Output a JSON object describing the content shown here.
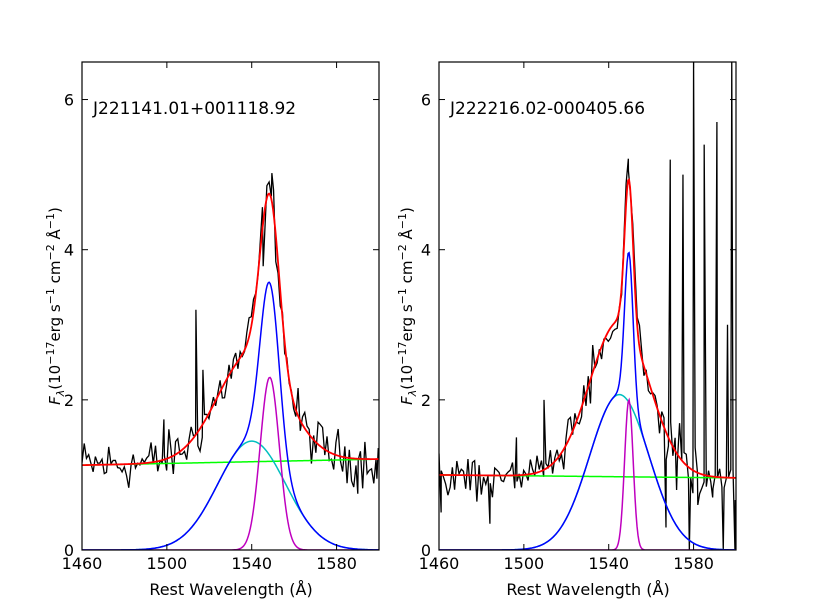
{
  "chart_data": [
    {
      "type": "line",
      "object_name": "J221141.01+001118.92",
      "xlabel": "Rest Wavelength (Å)",
      "ylabel": "F_λ (10^-17 erg s^-1 cm^-2 Å^-1)",
      "xlim": [
        1460,
        1600
      ],
      "ylim": [
        0,
        6.5
      ],
      "x_ticks": [
        1460,
        1500,
        1540,
        1580
      ],
      "y_ticks": [
        0,
        2,
        4,
        6
      ],
      "components": {
        "continuum": {
          "color": "#00ff00",
          "start": 1.13,
          "end": 1.21
        },
        "broad_gaussian": {
          "color": "#00bfbf",
          "center": 1540,
          "sigma": 16,
          "amplitude": 1.45
        },
        "narrow_gaussian": {
          "color": "#bf00bf",
          "center": 1548.5,
          "sigma": 4.5,
          "amplitude": 2.3
        },
        "line_sum": {
          "color": "#0000ff",
          "peak_value": 3.55
        },
        "total_fit": {
          "color": "#ff0000",
          "peak_value": 4.72
        }
      },
      "spectrum": {
        "color": "#000000",
        "noise_level": 0.17,
        "features": [
          {
            "x": 1498.6,
            "y": 1.74
          },
          {
            "x": 1513.7,
            "y": 3.2
          },
          {
            "x": 1517,
            "y": 2.4
          },
          {
            "x": 1549.5,
            "y": 5.02
          },
          {
            "x": 1545.4,
            "y": 3.78
          },
          {
            "x": 1590,
            "y": 0.75
          },
          {
            "x": 1599,
            "y": 0.95
          }
        ]
      }
    },
    {
      "type": "line",
      "object_name": "J222216.02-000405.66",
      "xlabel": "Rest Wavelength (Å)",
      "ylabel": "F_λ (10^-17 erg s^-1 cm^-2 Å^-1)",
      "xlim": [
        1460,
        1600
      ],
      "ylim": [
        0,
        6.5
      ],
      "x_ticks": [
        1460,
        1500,
        1540,
        1580
      ],
      "y_ticks": [
        0,
        2,
        4,
        6
      ],
      "components": {
        "continuum": {
          "color": "#00ff00",
          "start": 1.0,
          "end": 0.96
        },
        "broad_gaussian": {
          "color": "#00bfbf",
          "center": 1545,
          "sigma": 14,
          "amplitude": 2.07
        },
        "narrow_gaussian": {
          "color": "#bf00bf",
          "center": 1549.5,
          "sigma": 2,
          "amplitude": 2.0
        },
        "line_sum": {
          "color": "#0000ff",
          "peak_value": 4.03
        },
        "total_fit": {
          "color": "#ff0000",
          "peak_value": 5.05
        }
      },
      "spectrum": {
        "color": "#000000",
        "noise_level": 0.16,
        "features": [
          {
            "x": 1461,
            "y": 0.5
          },
          {
            "x": 1484,
            "y": 0.35
          },
          {
            "x": 1496.5,
            "y": 1.5
          },
          {
            "x": 1509.5,
            "y": 2.0
          },
          {
            "x": 1549.3,
            "y": 5.05
          },
          {
            "x": 1567,
            "y": 0.3
          },
          {
            "x": 1569,
            "y": 5.2
          },
          {
            "x": 1572,
            "y": 0.8
          },
          {
            "x": 1575,
            "y": 5.0
          },
          {
            "x": 1578,
            "y": 0.0
          },
          {
            "x": 1580,
            "y": 6.5
          },
          {
            "x": 1582,
            "y": 0.6
          },
          {
            "x": 1585,
            "y": 5.4
          },
          {
            "x": 1589,
            "y": 0.7
          },
          {
            "x": 1591,
            "y": 5.7
          },
          {
            "x": 1594,
            "y": 0.0
          },
          {
            "x": 1596,
            "y": 3.0
          },
          {
            "x": 1598,
            "y": 6.5
          },
          {
            "x": 1599.5,
            "y": 0.0
          }
        ]
      }
    }
  ]
}
